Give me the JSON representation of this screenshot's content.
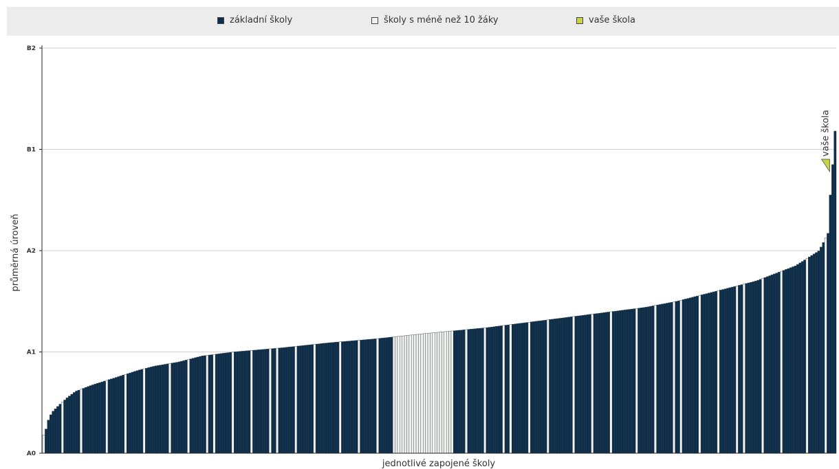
{
  "colors": {
    "school": "#0d2e4a",
    "small_school": "#f2f2ee",
    "your_school": "#c8d24a",
    "grid": "#cfcfcf",
    "legend_bg": "#ececec"
  },
  "chart_data": {
    "type": "bar",
    "title": "",
    "xlabel": "jednotlivé zapojené školy",
    "ylabel": "průměrná úroveň",
    "y_ticks": [
      {
        "label": "A0",
        "value": 0
      },
      {
        "label": "A1",
        "value": 1
      },
      {
        "label": "A2",
        "value": 2
      },
      {
        "label": "B1",
        "value": 3
      },
      {
        "label": "B2",
        "value": 4
      }
    ],
    "ylim": [
      0,
      4
    ],
    "grid": true,
    "legend_position": "top",
    "legend": [
      {
        "name": "základní školy",
        "color_key": "school"
      },
      {
        "name": "školy s méně než 10 žáky",
        "color_key": "small_school"
      },
      {
        "name": "vaše škola",
        "color_key": "your_school"
      }
    ],
    "bar_count": 340,
    "value_profile": [
      [
        0,
        0.18
      ],
      [
        3,
        0.24
      ],
      [
        6,
        0.33
      ],
      [
        10,
        0.4
      ],
      [
        20,
        0.48
      ],
      [
        30,
        0.55
      ],
      [
        40,
        0.61
      ],
      [
        60,
        0.67
      ],
      [
        80,
        0.72
      ],
      [
        100,
        0.77
      ],
      [
        120,
        0.82
      ],
      [
        140,
        0.86
      ],
      [
        170,
        0.9
      ],
      [
        200,
        0.96
      ],
      [
        240,
        1.0
      ],
      [
        300,
        1.04
      ],
      [
        360,
        1.09
      ],
      [
        420,
        1.13
      ],
      [
        480,
        1.18
      ],
      [
        560,
        1.24
      ],
      [
        620,
        1.3
      ],
      [
        700,
        1.38
      ],
      [
        760,
        1.44
      ],
      [
        800,
        1.5
      ],
      [
        840,
        1.58
      ],
      [
        900,
        1.7
      ],
      [
        950,
        1.85
      ],
      [
        980,
        2.0
      ],
      [
        993,
        2.2
      ],
      [
        1000,
        2.55
      ],
      [
        1000,
        2.85
      ],
      [
        1000,
        3.18
      ]
    ],
    "highlight": {
      "label": "vaše škola",
      "position_fraction": 0.997,
      "value": 2.78
    }
  }
}
